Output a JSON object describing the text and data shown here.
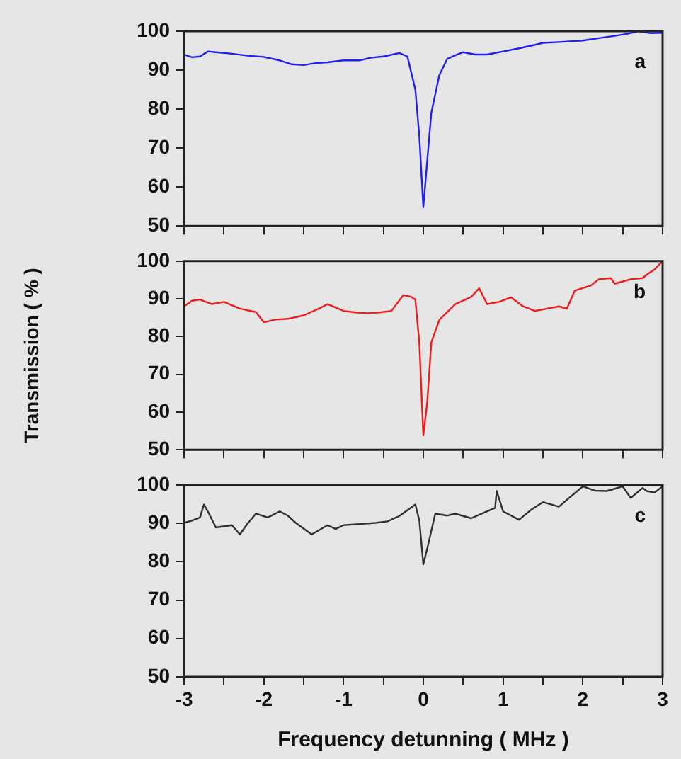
{
  "chart_data": [
    {
      "type": "line",
      "color": "#2020f0",
      "annotations": [
        "a"
      ],
      "marker": "none",
      "grid": false,
      "legend": false,
      "tick_labels": "y",
      "xlim": [
        -3,
        3
      ],
      "ylim": [
        50,
        100
      ],
      "yticks": [
        50,
        60,
        70,
        80,
        90,
        100
      ],
      "xticks": [
        {
          "value": -3,
          "label": null
        },
        {
          "value": -2.5,
          "label": null
        },
        {
          "value": -2,
          "label": null
        },
        {
          "value": -1.5,
          "label": null
        },
        {
          "value": -1,
          "label": null
        },
        {
          "value": -0.5,
          "label": null
        },
        {
          "value": 0,
          "label": null
        },
        {
          "value": 0.5,
          "label": null
        },
        {
          "value": 1,
          "label": null
        },
        {
          "value": 1.5,
          "label": null
        },
        {
          "value": 2,
          "label": null
        },
        {
          "value": 2.5,
          "label": null
        },
        {
          "value": 3,
          "label": null
        }
      ],
      "x": [
        -3,
        -2.9,
        -2.8,
        -2.7,
        -2.6,
        -2.4,
        -2.2,
        -2,
        -1.8,
        -1.65,
        -1.5,
        -1.35,
        -1.2,
        -1,
        -0.8,
        -0.65,
        -0.5,
        -0.3,
        -0.2,
        -0.1,
        -0.05,
        0,
        0.05,
        0.1,
        0.2,
        0.3,
        0.4,
        0.5,
        0.65,
        0.8,
        1,
        1.2,
        1.4,
        1.5,
        1.7,
        2,
        2.2,
        2.4,
        2.55,
        2.7,
        2.85,
        3
      ],
      "values": [
        94,
        93.3,
        93.5,
        94.8,
        94.6,
        94.2,
        93.7,
        93.4,
        92.5,
        91.5,
        91.3,
        91.8,
        92,
        92.5,
        92.5,
        93.2,
        93.5,
        94.4,
        93.5,
        85,
        73,
        54.8,
        67,
        79,
        88.7,
        92.9,
        93.8,
        94.6,
        94,
        94,
        94.8,
        95.6,
        96.5,
        97,
        97.2,
        97.6,
        98.2,
        98.8,
        99.3,
        100,
        99.5,
        99.6
      ]
    },
    {
      "type": "line",
      "color": "#ee1c1c",
      "annotations": [
        "b"
      ],
      "ylabel": "Transmission ( % )",
      "marker": "none",
      "grid": false,
      "legend": false,
      "tick_labels": "y",
      "xlim": [
        -3,
        3
      ],
      "ylim": [
        50,
        100
      ],
      "yticks": [
        50,
        60,
        70,
        80,
        90,
        100
      ],
      "xticks": [
        {
          "value": -3,
          "label": null
        },
        {
          "value": -2.5,
          "label": null
        },
        {
          "value": -2,
          "label": null
        },
        {
          "value": -1.5,
          "label": null
        },
        {
          "value": -1,
          "label": null
        },
        {
          "value": -0.5,
          "label": null
        },
        {
          "value": 0,
          "label": null
        },
        {
          "value": 0.5,
          "label": null
        },
        {
          "value": 1,
          "label": null
        },
        {
          "value": 1.5,
          "label": null
        },
        {
          "value": 2,
          "label": null
        },
        {
          "value": 2.5,
          "label": null
        },
        {
          "value": 3,
          "label": null
        }
      ],
      "x": [
        -3,
        -2.9,
        -2.8,
        -2.65,
        -2.5,
        -2.3,
        -2.1,
        -2,
        -1.85,
        -1.7,
        -1.5,
        -1.3,
        -1.2,
        -1,
        -0.85,
        -0.7,
        -0.55,
        -0.4,
        -0.25,
        -0.15,
        -0.1,
        -0.05,
        0,
        0.05,
        0.1,
        0.2,
        0.4,
        0.6,
        0.7,
        0.8,
        0.95,
        1.1,
        1.25,
        1.4,
        1.6,
        1.7,
        1.8,
        1.9,
        2.1,
        2.2,
        2.35,
        2.4,
        2.6,
        2.75,
        2.8,
        2.9,
        3
      ],
      "values": [
        88,
        89.5,
        89.8,
        88.6,
        89.2,
        87.4,
        86.5,
        83.8,
        84.5,
        84.7,
        85.6,
        87.5,
        88.6,
        86.8,
        86.4,
        86.2,
        86.4,
        86.8,
        91,
        90.5,
        89.8,
        78.4,
        53.8,
        62.8,
        78.4,
        84.4,
        88.6,
        90.5,
        92.8,
        88.6,
        89.2,
        90.4,
        88,
        86.8,
        87.6,
        88,
        87.4,
        92.2,
        93.5,
        95.2,
        95.5,
        94,
        95.2,
        95.5,
        96.4,
        97.8,
        100
      ]
    },
    {
      "type": "line",
      "color": "#303030",
      "annotations": [
        "c"
      ],
      "xlabel": "Frequency detunning ( MHz )",
      "marker": "none",
      "grid": false,
      "legend": false,
      "xlim": [
        -3,
        3
      ],
      "ylim": [
        50,
        100
      ],
      "yticks": [
        50,
        60,
        70,
        80,
        90,
        100
      ],
      "xticks": [
        -3,
        {
          "value": -2.5,
          "label": null
        },
        -2,
        {
          "value": -1.5,
          "label": null
        },
        -1,
        {
          "value": -0.5,
          "label": null
        },
        0,
        {
          "value": 0.5,
          "label": null
        },
        1,
        {
          "value": 1.5,
          "label": null
        },
        2,
        {
          "value": 2.5,
          "label": null
        },
        3
      ],
      "x": [
        -3,
        -2.9,
        -2.8,
        -2.75,
        -2.7,
        -2.6,
        -2.4,
        -2.3,
        -2.2,
        -2.1,
        -1.95,
        -1.8,
        -1.7,
        -1.6,
        -1.4,
        -1.2,
        -1.1,
        -1,
        -0.8,
        -0.6,
        -0.45,
        -0.3,
        -0.1,
        -0.05,
        0,
        0.05,
        0.15,
        0.3,
        0.4,
        0.6,
        0.8,
        0.9,
        0.92,
        1,
        1.2,
        1.35,
        1.5,
        1.7,
        1.85,
        2,
        2.15,
        2.3,
        2.4,
        2.5,
        2.6,
        2.75,
        2.8,
        2.9,
        3
      ],
      "values": [
        90.1,
        90.7,
        91.5,
        94.9,
        93,
        88.9,
        89.5,
        87.1,
        90,
        92.5,
        91.5,
        93.1,
        92,
        90.1,
        87.1,
        89.5,
        88.5,
        89.5,
        89.8,
        90.1,
        90.5,
        91.9,
        94.9,
        90.7,
        79.3,
        83.5,
        92.5,
        92,
        92.5,
        91.3,
        93.1,
        94,
        98.4,
        93.1,
        90.9,
        93.5,
        95.5,
        94.3,
        97,
        99.6,
        98.5,
        98.4,
        99,
        99.6,
        96.6,
        99.2,
        98.4,
        98,
        99.6
      ]
    }
  ]
}
